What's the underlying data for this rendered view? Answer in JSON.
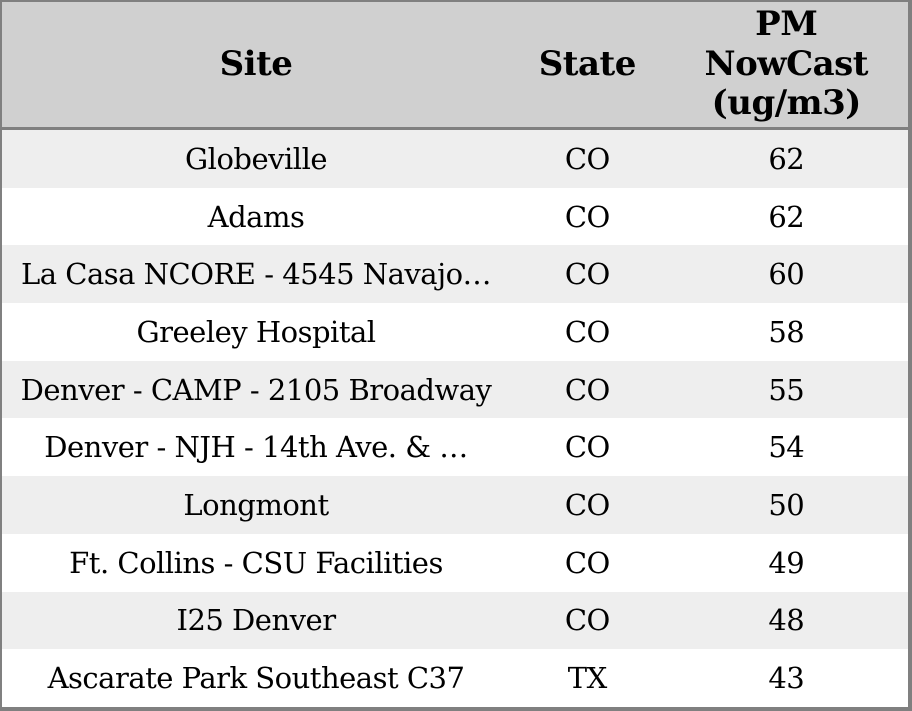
{
  "chart_data": {
    "type": "table",
    "columns": [
      "Site",
      "State",
      "PM NowCast (ug/m3)"
    ],
    "rows": [
      [
        "Globeville",
        "CO",
        62
      ],
      [
        "Adams",
        "CO",
        62
      ],
      [
        "La Casa NCORE - 4545 Navajo…",
        "CO",
        60
      ],
      [
        "Greeley Hospital",
        "CO",
        58
      ],
      [
        "Denver - CAMP - 2105 Broadway",
        "CO",
        55
      ],
      [
        "Denver - NJH - 14th Ave. & …",
        "CO",
        54
      ],
      [
        "Longmont",
        "CO",
        50
      ],
      [
        "Ft. Collins - CSU Facilities",
        "CO",
        49
      ],
      [
        "I25 Denver",
        "CO",
        48
      ],
      [
        "Ascarate Park Southeast C37",
        "TX",
        43
      ]
    ],
    "layout": {
      "header_align": "center",
      "cell_align": "center",
      "striped": true,
      "stripe_pattern": "odd-rows-shaded",
      "grid": "outer-border-and-header-separator-only"
    }
  },
  "colors": {
    "header_bg": "#d0d0d0",
    "row_stripe_bg": "#eeeeee",
    "row_bg": "#ffffff",
    "border": "#808080",
    "text": "#000000"
  }
}
